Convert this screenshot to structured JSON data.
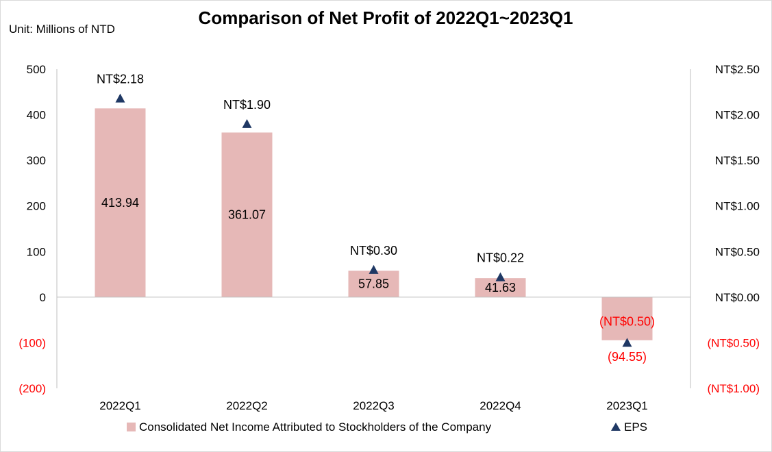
{
  "chart_data": {
    "type": "bar+scatter",
    "title": "Comparison of Net Profit of 2022Q1~2023Q1",
    "unit_label": "Unit: Millions of NTD",
    "categories": [
      "2022Q1",
      "2022Q2",
      "2022Q3",
      "2022Q4",
      "2023Q1"
    ],
    "series": [
      {
        "name": "Consolidated Net Income Attributed to Stockholders of the Company",
        "type": "bar",
        "axis": "left",
        "color": "#e6b8b7",
        "values": [
          413.94,
          361.07,
          57.85,
          41.63,
          -94.55
        ],
        "labels": [
          "413.94",
          "361.07",
          "57.85",
          "41.63",
          "(94.55)"
        ]
      },
      {
        "name": "EPS",
        "type": "scatter",
        "marker": "triangle",
        "axis": "right",
        "color": "#1f3864",
        "values": [
          2.18,
          1.9,
          0.3,
          0.22,
          -0.5
        ],
        "labels": [
          "NT$2.18",
          "NT$1.90",
          "NT$0.30",
          "NT$0.22",
          "(NT$0.50)"
        ]
      }
    ],
    "y_left": {
      "range": [
        -200,
        500
      ],
      "ticks": [
        500,
        400,
        300,
        200,
        100,
        0,
        -100,
        -200
      ],
      "tick_labels": [
        "500",
        "400",
        "300",
        "200",
        "100",
        "0",
        "(100)",
        "(200)"
      ]
    },
    "y_right": {
      "range": [
        -1.0,
        2.5
      ],
      "ticks": [
        2.5,
        2.0,
        1.5,
        1.0,
        0.5,
        0.0,
        -0.5,
        -1.0
      ],
      "tick_labels": [
        "NT$2.50",
        "NT$2.00",
        "NT$1.50",
        "NT$1.00",
        "NT$0.50",
        "NT$0.00",
        "(NT$0.50)",
        "(NT$1.00)"
      ]
    },
    "negative_color": "#ff0000",
    "legend": "bottom",
    "grid": false
  }
}
